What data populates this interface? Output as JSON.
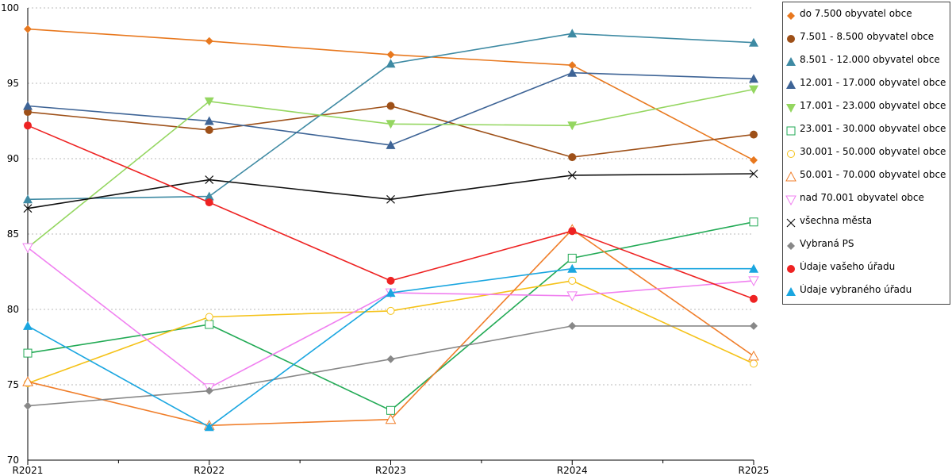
{
  "chart_data": {
    "type": "line",
    "categories": [
      "R2021",
      "R2022",
      "R2023",
      "R2024",
      "R2025"
    ],
    "ylim": [
      70,
      100
    ],
    "yticks": [
      70,
      75,
      80,
      85,
      90,
      95,
      100
    ],
    "grid": "horizontal dotted",
    "legend_position": "right",
    "series": [
      {
        "name": "do 7.500 obyvatel obce",
        "color": "#E8781E",
        "marker": "diamond",
        "values": [
          98.6,
          97.8,
          96.9,
          96.2,
          89.9
        ]
      },
      {
        "name": "7.501 - 8.500 obyvatel obce",
        "color": "#9E5018",
        "marker": "circle",
        "values": [
          93.1,
          91.9,
          93.5,
          90.1,
          91.6
        ]
      },
      {
        "name": "8.501 - 12.000 obyvatel obce",
        "color": "#3E8AA3",
        "marker": "triangle",
        "values": [
          87.3,
          87.5,
          96.3,
          98.3,
          97.7
        ]
      },
      {
        "name": "12.001 - 17.000 obyvatel obce",
        "color": "#3E6496",
        "marker": "triangle",
        "values": [
          93.5,
          92.5,
          90.9,
          95.7,
          95.3
        ]
      },
      {
        "name": "17.001 - 23.000 obyvatel obce",
        "color": "#94D660",
        "marker": "triangle-down",
        "values": [
          84.1,
          93.8,
          92.3,
          92.2,
          94.6
        ]
      },
      {
        "name": "23.001 - 30.000 obyvatel obce",
        "color": "#22AA55",
        "marker": "square-open",
        "values": [
          77.1,
          79.0,
          73.3,
          83.4,
          85.8
        ]
      },
      {
        "name": "30.001 - 50.000 obyvatel obce",
        "color": "#F5C218",
        "marker": "circle-open",
        "values": [
          75.1,
          79.5,
          79.9,
          81.9,
          76.4
        ]
      },
      {
        "name": "50.001 - 70.000 obyvatel obce",
        "color": "#F07E2A",
        "marker": "triangle-open",
        "values": [
          75.2,
          72.3,
          72.7,
          85.3,
          76.9
        ]
      },
      {
        "name": "nad 70.001 obyvatel obce",
        "color": "#F080F0",
        "marker": "triangle-down-open",
        "values": [
          84.1,
          74.8,
          81.1,
          80.9,
          81.9
        ]
      },
      {
        "name": "všechna města",
        "color": "#111111",
        "marker": "x",
        "values": [
          86.7,
          88.6,
          87.3,
          88.9,
          89.0
        ]
      },
      {
        "name": "Vybraná PS",
        "color": "#888888",
        "marker": "diamond",
        "values": [
          73.6,
          74.6,
          76.7,
          78.9,
          78.9
        ]
      },
      {
        "name": "Údaje vašeho úřadu",
        "color": "#EE2222",
        "marker": "circle",
        "values": [
          92.2,
          87.1,
          81.9,
          85.2,
          80.7
        ]
      },
      {
        "name": "Údaje vybraného úřadu",
        "color": "#1AA6E0",
        "marker": "triangle",
        "values": [
          78.9,
          72.2,
          81.1,
          82.7,
          82.7
        ]
      }
    ]
  }
}
